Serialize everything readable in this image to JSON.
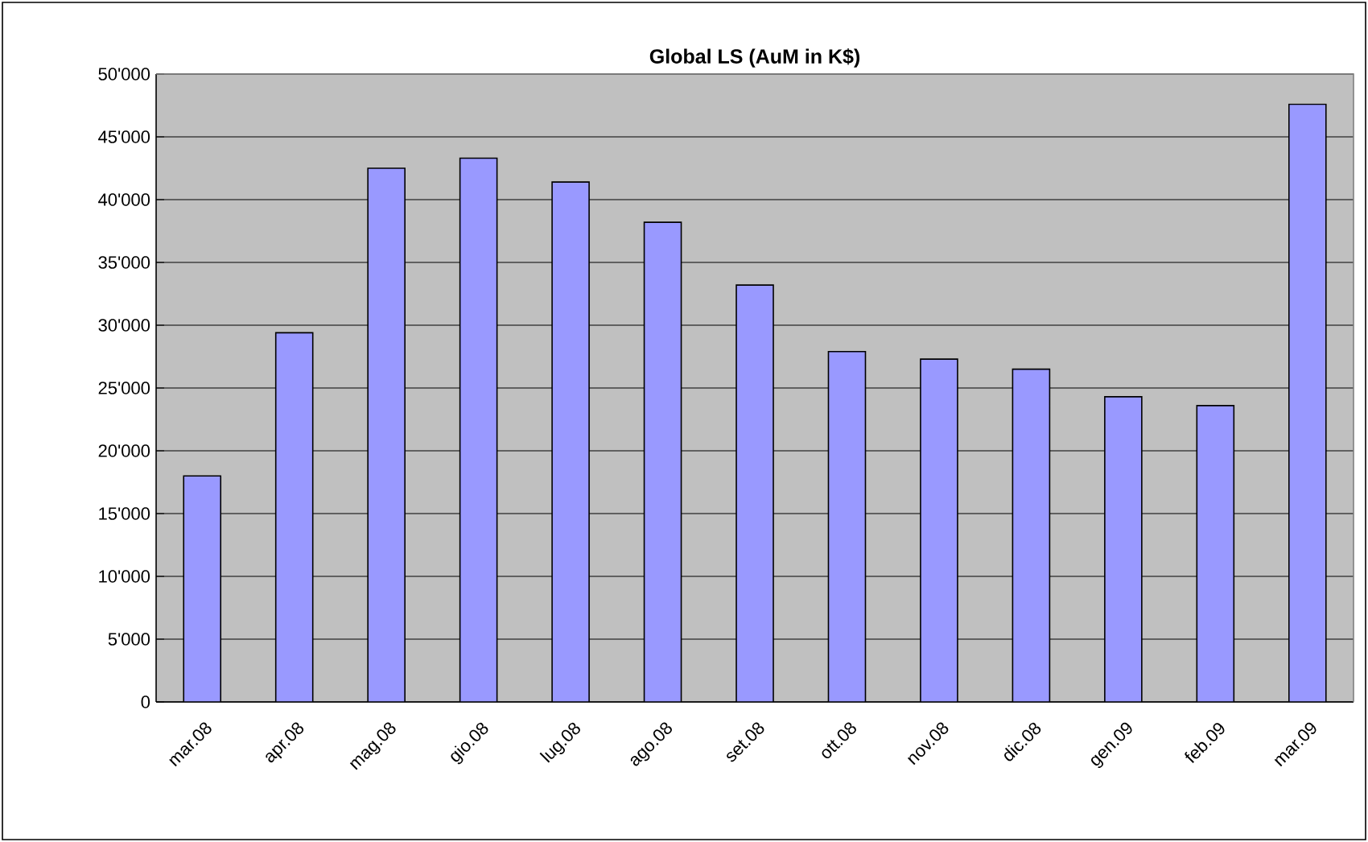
{
  "chart_data": {
    "type": "bar",
    "title": "Global LS (AuM in K$)",
    "categories": [
      "mar.08",
      "apr.08",
      "mag.08",
      "gio.08",
      "lug.08",
      "ago.08",
      "set.08",
      "ott.08",
      "nov.08",
      "dic.08",
      "gen.09",
      "feb.09",
      "mar.09"
    ],
    "values": [
      18000,
      29400,
      42500,
      43300,
      41400,
      38200,
      33200,
      27900,
      27300,
      26500,
      24300,
      23600,
      47600
    ],
    "color": "#9999ff",
    "ylim": [
      0,
      50000
    ],
    "yticks": [
      0,
      {
        "value": 5000,
        "label": "5'000"
      },
      {
        "value": 10000,
        "label": "10'000"
      },
      {
        "value": 15000,
        "label": "15'000"
      },
      {
        "value": 20000,
        "label": "20'000"
      },
      {
        "value": 25000,
        "label": "25'000"
      },
      {
        "value": 30000,
        "label": "30'000"
      },
      {
        "value": 35000,
        "label": "35'000"
      },
      {
        "value": 40000,
        "label": "40'000"
      },
      {
        "value": 45000,
        "label": "45'000"
      },
      {
        "value": 50000,
        "label": "50'000"
      }
    ],
    "grid": "y"
  }
}
